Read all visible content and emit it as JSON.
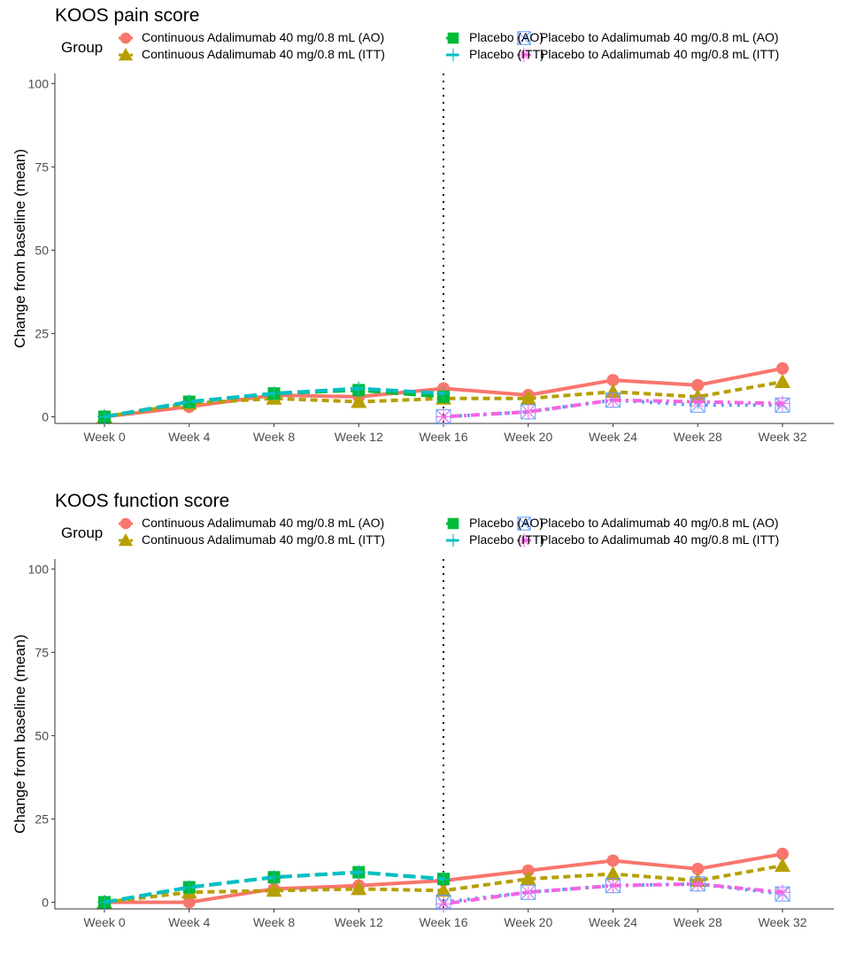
{
  "chart_data": [
    {
      "type": "line",
      "title": "KOOS pain score",
      "xlabel": "",
      "ylabel": "Change from baseline (mean)",
      "legend_title": "Group",
      "legend_position": "top",
      "categories": [
        "Week 0",
        "Week 4",
        "Week 8",
        "Week 12",
        "Week 16",
        "Week 20",
        "Week 24",
        "Week 28",
        "Week 32"
      ],
      "yticks": [
        0,
        25,
        50,
        75,
        100
      ],
      "ylim": [
        -2,
        103
      ],
      "vline_at": "Week 16",
      "series": [
        {
          "name": "Continuous Adalimumab 40 mg/0.8 mL (AO)",
          "color": "#F8766D",
          "marker": "circle",
          "dash": "solid",
          "values": [
            0,
            3,
            6.5,
            6,
            8.5,
            6.5,
            11,
            9.5,
            14.5
          ]
        },
        {
          "name": "Continuous Adalimumab 40 mg/0.8 mL (ITT)",
          "color": "#B79F00",
          "marker": "triangle",
          "dash": "dashed",
          "values": [
            0,
            4,
            5.5,
            4.5,
            5.5,
            5.5,
            7.5,
            6,
            10.5
          ]
        },
        {
          "name": "Placebo (AO)",
          "color": "#00BA38",
          "marker": "square",
          "dash": "longdash",
          "values": [
            0,
            4.5,
            7,
            8,
            6,
            null,
            null,
            null,
            null
          ]
        },
        {
          "name": "Placebo (ITT)",
          "color": "#00BFC4",
          "marker": "plus",
          "dash": "longdash",
          "values": [
            0,
            4.5,
            7,
            8.5,
            7,
            null,
            null,
            null,
            null
          ]
        },
        {
          "name": "Placebo to Adalimumab 40 mg/0.8 mL (AO)",
          "color": "#619CFF",
          "marker": "boxcross",
          "dash": "dotted",
          "values": [
            null,
            null,
            null,
            null,
            0,
            1.5,
            5,
            3.5,
            3.5
          ]
        },
        {
          "name": "Placebo to Adalimumab 40 mg/0.8 mL (ITT)",
          "color": "#F564E3",
          "marker": "star",
          "dash": "dotdash",
          "values": [
            null,
            null,
            null,
            null,
            0,
            1.5,
            5,
            4.5,
            4
          ]
        }
      ]
    },
    {
      "type": "line",
      "title": "KOOS function score",
      "xlabel": "",
      "ylabel": "Change from baseline (mean)",
      "legend_title": "Group",
      "legend_position": "top",
      "categories": [
        "Week 0",
        "Week 4",
        "Week 8",
        "Week 12",
        "Week 16",
        "Week 20",
        "Week 24",
        "Week 28",
        "Week 32"
      ],
      "yticks": [
        0,
        25,
        50,
        75,
        100
      ],
      "ylim": [
        -2,
        103
      ],
      "vline_at": "Week 16",
      "series": [
        {
          "name": "Continuous Adalimumab 40 mg/0.8 mL (AO)",
          "color": "#F8766D",
          "marker": "circle",
          "dash": "solid",
          "values": [
            0,
            0,
            4,
            5,
            6.5,
            9.5,
            12.5,
            10,
            14.5
          ]
        },
        {
          "name": "Continuous Adalimumab 40 mg/0.8 mL (ITT)",
          "color": "#B79F00",
          "marker": "triangle",
          "dash": "dashed",
          "values": [
            0,
            3,
            3.5,
            4,
            3.5,
            7,
            8.5,
            6.5,
            11
          ]
        },
        {
          "name": "Placebo (AO)",
          "color": "#00BA38",
          "marker": "square",
          "dash": "longdash",
          "values": [
            0,
            4.5,
            7.5,
            9,
            7,
            null,
            null,
            null,
            null
          ]
        },
        {
          "name": "Placebo (ITT)",
          "color": "#00BFC4",
          "marker": "plus",
          "dash": "longdash",
          "values": [
            0,
            4.5,
            7.5,
            9,
            7,
            null,
            null,
            null,
            null
          ]
        },
        {
          "name": "Placebo to Adalimumab 40 mg/0.8 mL (AO)",
          "color": "#619CFF",
          "marker": "boxcross",
          "dash": "dotted",
          "values": [
            null,
            null,
            null,
            null,
            0,
            3,
            5,
            5.5,
            2.5
          ]
        },
        {
          "name": "Placebo to Adalimumab 40 mg/0.8 mL (ITT)",
          "color": "#F564E3",
          "marker": "star",
          "dash": "dotdash",
          "values": [
            null,
            null,
            null,
            null,
            -0.5,
            3,
            5,
            5.5,
            3
          ]
        }
      ]
    }
  ]
}
